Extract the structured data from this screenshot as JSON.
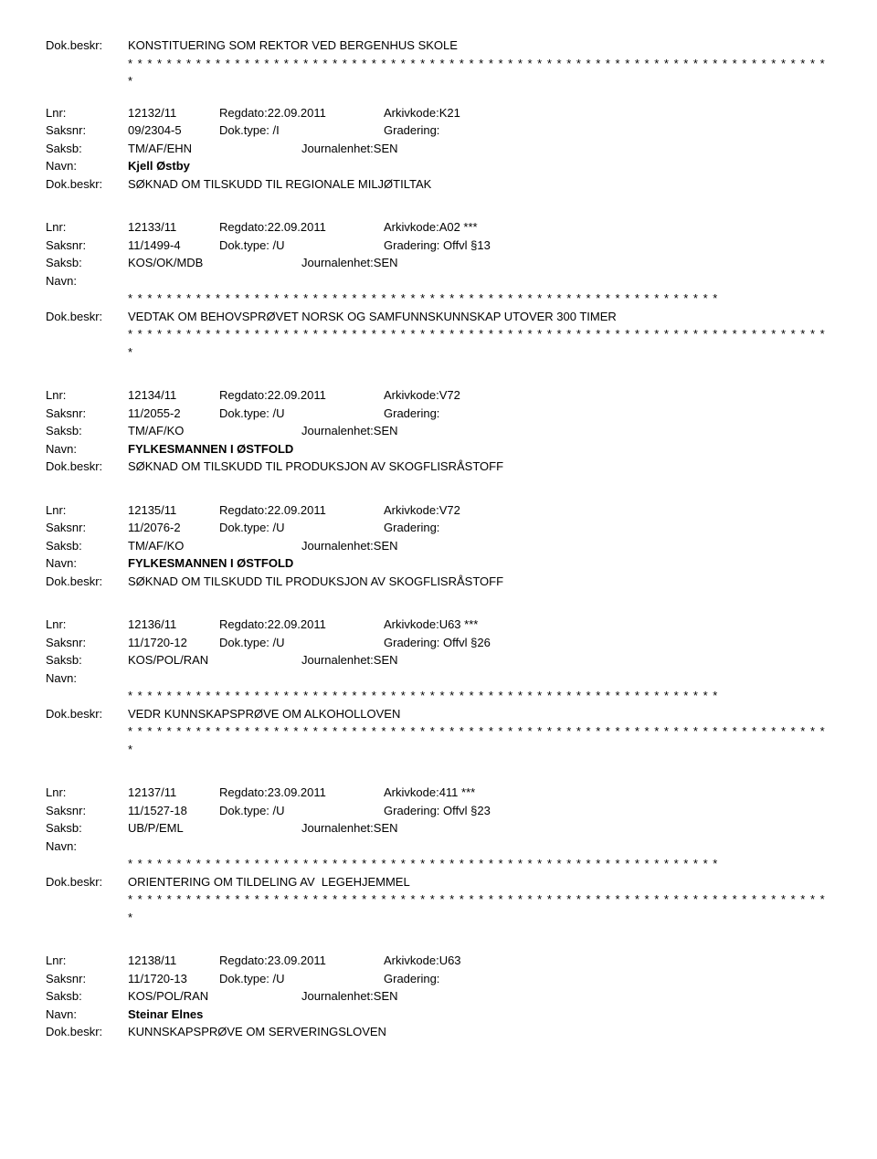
{
  "labels": {
    "lnr": "Lnr:",
    "regdato": "Regdato:",
    "arkivkode": "Arkivkode:",
    "saksnr": "Saksnr:",
    "doktype": "Dok.type:",
    "gradering": "Gradering:",
    "saksb": "Saksb:",
    "journalenhet": "Journalenhet:",
    "navn": "Navn:",
    "dokbeskr": "Dok.beskr:"
  },
  "stars_short": "* * * * * * * * * * * * * * * * * * * * * * * * * * * * * * * * * * * * * * * * * * * * * * * * * * * * * * * * * * * * *",
  "stars_long": "* * * * * * * * * * * * * * * * * * * * * * * * * * * * * * * * * * * * * * * * * * * * * * * * * * * * * * * * * * * * * * * * * * * * * * * * *",
  "entries": [
    {
      "pre_dokbeskr": "KONSTITUERING SOM REKTOR VED BERGENHUS SKOLE",
      "pre_stars": true,
      "lnr": "12132/11",
      "regdato": "22.09.2011",
      "arkivkode": "K21",
      "saksnr": "09/2304-5",
      "doktype": "/I",
      "gradering": "",
      "saksb": "TM/AF/EHN",
      "journalenhet": "SEN",
      "navn": "Kjell Østby",
      "dokbeskr": "SØKNAD OM TILSKUDD TIL REGIONALE MILJØTILTAK",
      "navn_stars": false,
      "post_stars": false
    },
    {
      "lnr": "12133/11",
      "regdato": "22.09.2011",
      "arkivkode": "A02 ***",
      "saksnr": "11/1499-4",
      "doktype": "/U",
      "gradering": "Offvl §13",
      "saksb": "KOS/OK/MDB",
      "journalenhet": "SEN",
      "navn": "",
      "navn_stars": true,
      "dokbeskr": "VEDTAK OM BEHOVSPRØVET NORSK OG SAMFUNNSKUNNSKAP UTOVER 300 TIMER",
      "post_stars": true
    },
    {
      "lnr": "12134/11",
      "regdato": "22.09.2011",
      "arkivkode": "V72",
      "saksnr": "11/2055-2",
      "doktype": "/U",
      "gradering": "",
      "saksb": "TM/AF/KO",
      "journalenhet": "SEN",
      "navn": "FYLKESMANNEN I ØSTFOLD",
      "navn_stars": false,
      "dokbeskr": "SØKNAD OM TILSKUDD TIL PRODUKSJON AV SKOGFLISRÅSTOFF",
      "post_stars": false
    },
    {
      "lnr": "12135/11",
      "regdato": "22.09.2011",
      "arkivkode": "V72",
      "saksnr": "11/2076-2",
      "doktype": "/U",
      "gradering": "",
      "saksb": "TM/AF/KO",
      "journalenhet": "SEN",
      "navn": "FYLKESMANNEN I ØSTFOLD",
      "navn_stars": false,
      "dokbeskr": "SØKNAD OM TILSKUDD TIL PRODUKSJON AV SKOGFLISRÅSTOFF",
      "post_stars": false
    },
    {
      "lnr": "12136/11",
      "regdato": "22.09.2011",
      "arkivkode": "U63 ***",
      "saksnr": "11/1720-12",
      "doktype": "/U",
      "gradering": "Offvl §26",
      "saksb": "KOS/POL/RAN",
      "journalenhet": "SEN",
      "navn": "",
      "navn_stars": true,
      "dokbeskr": "VEDR KUNNSKAPSPRØVE OM ALKOHOLLOVEN",
      "post_stars": true
    },
    {
      "lnr": "12137/11",
      "regdato": "23.09.2011",
      "arkivkode": "411 ***",
      "saksnr": "11/1527-18",
      "doktype": "/U",
      "gradering": "Offvl §23",
      "saksb": "UB/P/EML",
      "journalenhet": "SEN",
      "navn": "",
      "navn_stars": true,
      "dokbeskr": "ORIENTERING OM TILDELING AV  LEGEHJEMMEL",
      "post_stars": true
    },
    {
      "lnr": "12138/11",
      "regdato": "23.09.2011",
      "arkivkode": "U63",
      "saksnr": "11/1720-13",
      "doktype": "/U",
      "gradering": "",
      "saksb": "KOS/POL/RAN",
      "journalenhet": "SEN",
      "navn": "Steinar Elnes",
      "navn_stars": false,
      "dokbeskr": "KUNNSKAPSPRØVE OM SERVERINGSLOVEN",
      "post_stars": false
    }
  ]
}
